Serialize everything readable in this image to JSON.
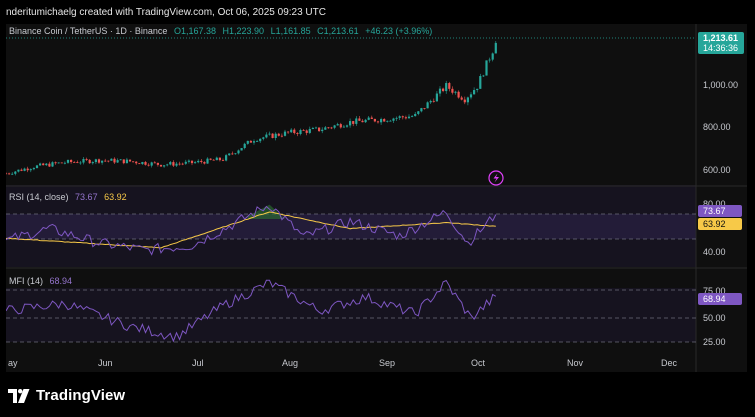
{
  "watermark": "nderitumichaelg created with TradingView.com, Oct 06, 2025 09:23 UTC",
  "brand": {
    "name": "TradingView",
    "logo_icon": "tradingview-logo-icon"
  },
  "colors": {
    "background": "#0f0f0f",
    "up": "#26a69a",
    "down": "#ef5350",
    "rsi_line": "#7e57c2",
    "rsi_ma": "#f7c948",
    "mfi_line": "#7e57c2",
    "price_badge": "#26a69a",
    "rsi_badge": "#7e57c2",
    "rsi_ma_badge": "#f7c948"
  },
  "price_pane": {
    "symbol": "Binance Coin / TetherUS · 1D · Binance",
    "ohlc": [
      {
        "label": "O",
        "value": "1,167.38"
      },
      {
        "label": "H",
        "value": "1,223.90"
      },
      {
        "label": "L",
        "value": "1,161.85"
      },
      {
        "label": "C",
        "value": "1,213.61"
      }
    ],
    "change": "+46.23 (+3.96%)",
    "last_price": "1,213.61",
    "countdown": "14:36:36",
    "axis_ticks": [
      "1,000.00",
      "800.00",
      "600.00"
    ],
    "alert_icon": "lightning-icon"
  },
  "rsi_pane": {
    "title": "RSI (14, close)",
    "rsi_value": "73.67",
    "ma_value": "63.92",
    "axis_ticks": [
      "80.00",
      "40.00"
    ]
  },
  "mfi_pane": {
    "title": "MFI (14)",
    "value": "68.94",
    "axis_ticks": [
      "75.00",
      "50.00",
      "25.00"
    ]
  },
  "x_axis": [
    "ay",
    "Jun",
    "Jul",
    "Aug",
    "Sep",
    "Oct",
    "Nov",
    "Dec"
  ],
  "chart_data": [
    {
      "type": "candlestick",
      "title": "Binance Coin / TetherUS · 1D · Binance",
      "x_axis_labels": [
        "ay",
        "Jun",
        "Jul",
        "Aug",
        "Sep",
        "Oct",
        "Nov",
        "Dec"
      ],
      "y_ticks": [
        600,
        800,
        1000
      ],
      "last_close": 1213.61,
      "close_path": [
        {
          "x": "2025-05-01",
          "y": 598
        },
        {
          "x": "2025-05-10",
          "y": 630
        },
        {
          "x": "2025-05-20",
          "y": 650
        },
        {
          "x": "2025-05-31",
          "y": 660
        },
        {
          "x": "2025-06-10",
          "y": 655
        },
        {
          "x": "2025-06-20",
          "y": 640
        },
        {
          "x": "2025-06-30",
          "y": 648
        },
        {
          "x": "2025-07-10",
          "y": 665
        },
        {
          "x": "2025-07-20",
          "y": 760
        },
        {
          "x": "2025-07-31",
          "y": 790
        },
        {
          "x": "2025-08-10",
          "y": 805
        },
        {
          "x": "2025-08-20",
          "y": 840
        },
        {
          "x": "2025-08-31",
          "y": 855
        },
        {
          "x": "2025-09-10",
          "y": 870
        },
        {
          "x": "2025-09-20",
          "y": 1010
        },
        {
          "x": "2025-09-26",
          "y": 950
        },
        {
          "x": "2025-09-30",
          "y": 1010
        },
        {
          "x": "2025-10-06",
          "y": 1213.61
        }
      ]
    },
    {
      "type": "line",
      "title": "RSI (14, close)",
      "y_ticks": [
        40,
        80
      ],
      "series": [
        {
          "name": "RSI",
          "values": [
            {
              "x": "2025-05-01",
              "y": 52
            },
            {
              "x": "2025-05-15",
              "y": 62
            },
            {
              "x": "2025-05-31",
              "y": 50
            },
            {
              "x": "2025-06-15",
              "y": 44
            },
            {
              "x": "2025-06-30",
              "y": 48
            },
            {
              "x": "2025-07-15",
              "y": 68
            },
            {
              "x": "2025-07-25",
              "y": 82
            },
            {
              "x": "2025-08-05",
              "y": 55
            },
            {
              "x": "2025-08-20",
              "y": 68
            },
            {
              "x": "2025-09-05",
              "y": 56
            },
            {
              "x": "2025-09-20",
              "y": 76
            },
            {
              "x": "2025-09-27",
              "y": 50
            },
            {
              "x": "2025-10-06",
              "y": 73.67
            }
          ]
        },
        {
          "name": "RSI-based MA",
          "values": [
            {
              "x": "2025-05-01",
              "y": 54
            },
            {
              "x": "2025-06-20",
              "y": 46
            },
            {
              "x": "2025-07-25",
              "y": 76
            },
            {
              "x": "2025-08-20",
              "y": 62
            },
            {
              "x": "2025-09-20",
              "y": 67
            },
            {
              "x": "2025-10-06",
              "y": 63.92
            }
          ]
        }
      ]
    },
    {
      "type": "line",
      "title": "MFI (14)",
      "y_ticks": [
        25,
        50,
        75
      ],
      "series": [
        {
          "name": "MFI",
          "values": [
            {
              "x": "2025-05-01",
              "y": 55
            },
            {
              "x": "2025-05-20",
              "y": 62
            },
            {
              "x": "2025-06-10",
              "y": 40
            },
            {
              "x": "2025-06-25",
              "y": 30
            },
            {
              "x": "2025-07-10",
              "y": 60
            },
            {
              "x": "2025-07-25",
              "y": 82
            },
            {
              "x": "2025-08-10",
              "y": 55
            },
            {
              "x": "2025-08-25",
              "y": 68
            },
            {
              "x": "2025-09-10",
              "y": 52
            },
            {
              "x": "2025-09-20",
              "y": 82
            },
            {
              "x": "2025-09-28",
              "y": 48
            },
            {
              "x": "2025-10-06",
              "y": 68.94
            }
          ]
        }
      ]
    }
  ]
}
